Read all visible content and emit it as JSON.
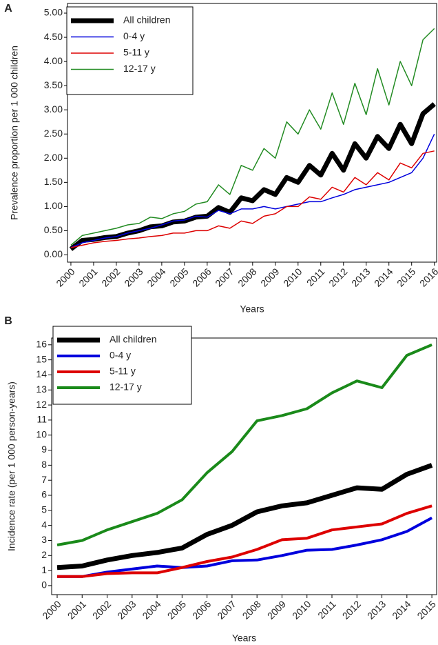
{
  "chart_data": [
    {
      "type": "line",
      "label": "A",
      "x_label": "Years",
      "y_label": "Prevalence proportion per 1 000 children",
      "x": [
        2000,
        2000.5,
        2001,
        2001.5,
        2002,
        2002.5,
        2003,
        2003.5,
        2004,
        2004.5,
        2005,
        2005.5,
        2006,
        2006.5,
        2007,
        2007.5,
        2008,
        2008.5,
        2009,
        2009.5,
        2010,
        2010.5,
        2011,
        2011.5,
        2012,
        2012.5,
        2013,
        2013.5,
        2014,
        2014.5,
        2015,
        2015.5,
        2016
      ],
      "series": [
        {
          "name": "All children",
          "color": "#000000",
          "line_width": 7,
          "values": [
            0.12,
            0.3,
            0.32,
            0.36,
            0.38,
            0.45,
            0.5,
            0.58,
            0.6,
            0.68,
            0.7,
            0.78,
            0.8,
            0.98,
            0.88,
            1.18,
            1.12,
            1.35,
            1.25,
            1.6,
            1.5,
            1.85,
            1.65,
            2.1,
            1.75,
            2.3,
            2.0,
            2.45,
            2.2,
            2.7,
            2.3,
            2.92,
            3.12
          ]
        },
        {
          "name": "0-4 y",
          "color": "#0000dd",
          "line_width": 1.5,
          "values": [
            0.15,
            0.25,
            0.3,
            0.35,
            0.38,
            0.45,
            0.5,
            0.55,
            0.62,
            0.7,
            0.72,
            0.8,
            0.78,
            0.92,
            0.85,
            0.95,
            0.95,
            1.0,
            0.95,
            1.0,
            1.05,
            1.1,
            1.1,
            1.18,
            1.25,
            1.35,
            1.4,
            1.45,
            1.5,
            1.6,
            1.7,
            2.0,
            2.5
          ]
        },
        {
          "name": "5-11 y",
          "color": "#dd0000",
          "line_width": 1.5,
          "values": [
            0.15,
            0.2,
            0.25,
            0.28,
            0.3,
            0.33,
            0.35,
            0.38,
            0.4,
            0.45,
            0.45,
            0.5,
            0.5,
            0.6,
            0.55,
            0.7,
            0.65,
            0.8,
            0.85,
            1.0,
            1.0,
            1.2,
            1.15,
            1.4,
            1.3,
            1.6,
            1.45,
            1.7,
            1.55,
            1.9,
            1.8,
            2.1,
            2.15
          ]
        },
        {
          "name": "12-17 y",
          "color": "#228b22",
          "line_width": 1.5,
          "values": [
            0.2,
            0.4,
            0.45,
            0.5,
            0.55,
            0.62,
            0.65,
            0.78,
            0.75,
            0.85,
            0.9,
            1.05,
            1.1,
            1.45,
            1.25,
            1.85,
            1.75,
            2.2,
            2.0,
            2.75,
            2.5,
            3.0,
            2.6,
            3.35,
            2.7,
            3.55,
            2.9,
            3.85,
            3.1,
            4.0,
            3.5,
            4.45,
            4.68
          ]
        }
      ],
      "xlim": [
        1999.85,
        2016.1
      ],
      "xticks": [
        2000,
        2001,
        2002,
        2003,
        2004,
        2005,
        2006,
        2007,
        2008,
        2009,
        2010,
        2011,
        2012,
        2013,
        2014,
        2015,
        2016
      ],
      "ylim": [
        -0.15,
        5.2
      ],
      "yticks": [
        {
          "value": 0,
          "label": "0.00"
        },
        {
          "value": 0.5,
          "label": "0.50"
        },
        {
          "value": 1,
          "label": "1.00"
        },
        {
          "value": 1.5,
          "label": "1.50"
        },
        {
          "value": 2,
          "label": "2.00"
        },
        {
          "value": 2.5,
          "label": "2.50"
        },
        {
          "value": 3,
          "label": "3.00"
        },
        {
          "value": 3.5,
          "label": "3.50"
        },
        {
          "value": 4,
          "label": "4.00"
        },
        {
          "value": 4.5,
          "label": "4.50"
        },
        {
          "value": 5,
          "label": "5.00"
        }
      ],
      "grid": false,
      "legend": "upper left"
    },
    {
      "type": "line",
      "label": "B",
      "x_label": "Years",
      "y_label": "Incidence rate (per 1 000 person-years)",
      "x": [
        2000,
        2001,
        2002,
        2003,
        2004,
        2005,
        2006,
        2007,
        2008,
        2009,
        2010,
        2011,
        2012,
        2013,
        2014,
        2015
      ],
      "series": [
        {
          "name": "All children",
          "color": "#000000",
          "line_width": 7,
          "values": [
            1.2,
            1.3,
            1.7,
            2.0,
            2.2,
            2.5,
            3.4,
            4.0,
            4.9,
            5.3,
            5.5,
            6.0,
            6.5,
            6.4,
            7.4,
            8.0
          ]
        },
        {
          "name": "0-4 y",
          "color": "#0000dd",
          "line_width": 4,
          "values": [
            0.6,
            0.6,
            0.9,
            1.1,
            1.3,
            1.2,
            1.3,
            1.65,
            1.7,
            2.0,
            2.35,
            2.4,
            2.7,
            3.05,
            3.6,
            4.5
          ]
        },
        {
          "name": "5-11 y",
          "color": "#dd0000",
          "line_width": 4,
          "values": [
            0.6,
            0.6,
            0.8,
            0.85,
            0.85,
            1.2,
            1.6,
            1.9,
            2.4,
            3.05,
            3.15,
            3.7,
            3.9,
            4.1,
            4.8,
            5.3
          ]
        },
        {
          "name": "12-17 y",
          "color": "#1a8a1a",
          "line_width": 4,
          "values": [
            2.7,
            3.0,
            3.7,
            4.25,
            4.8,
            5.7,
            7.5,
            8.9,
            10.95,
            11.3,
            11.75,
            12.8,
            13.6,
            13.15,
            15.3,
            16.0
          ]
        }
      ],
      "xlim": [
        1999.78,
        2015.19
      ],
      "xticks": [
        2000,
        2001,
        2002,
        2003,
        2004,
        2005,
        2006,
        2007,
        2008,
        2009,
        2010,
        2011,
        2012,
        2013,
        2014,
        2015
      ],
      "ylim": [
        -0.6,
        16.45
      ],
      "yticks": [
        0,
        1,
        2,
        3,
        4,
        5,
        6,
        7,
        8,
        9,
        10,
        11,
        12,
        13,
        14,
        15,
        16
      ],
      "grid": false,
      "legend": "upper left"
    }
  ]
}
